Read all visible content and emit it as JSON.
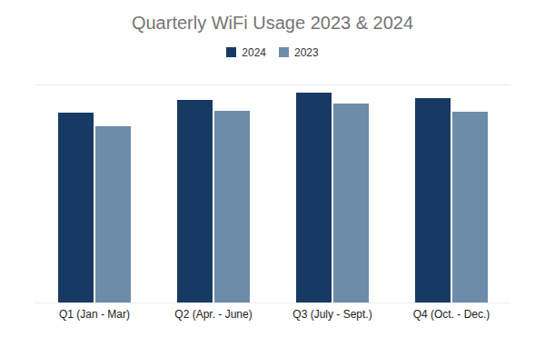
{
  "chart_data": {
    "type": "bar",
    "title": "Quarterly WiFi Usage 2023 & 2024",
    "categories": [
      "Q1 (Jan - Mar)",
      "Q2 (Apr. - June)",
      "Q3 (July - Sept.)",
      "Q4 (Oct. - Dec.)"
    ],
    "series": [
      {
        "name": "2024",
        "color": "#173a64",
        "values": [
          209,
          223,
          231,
          225
        ]
      },
      {
        "name": "2023",
        "color": "#6d8caa",
        "values": [
          194,
          211,
          219,
          210
        ]
      }
    ],
    "ylim": [
      0,
      240
    ],
    "yticks": [],
    "grid": false,
    "legend": "top",
    "tick_labels": "x"
  }
}
